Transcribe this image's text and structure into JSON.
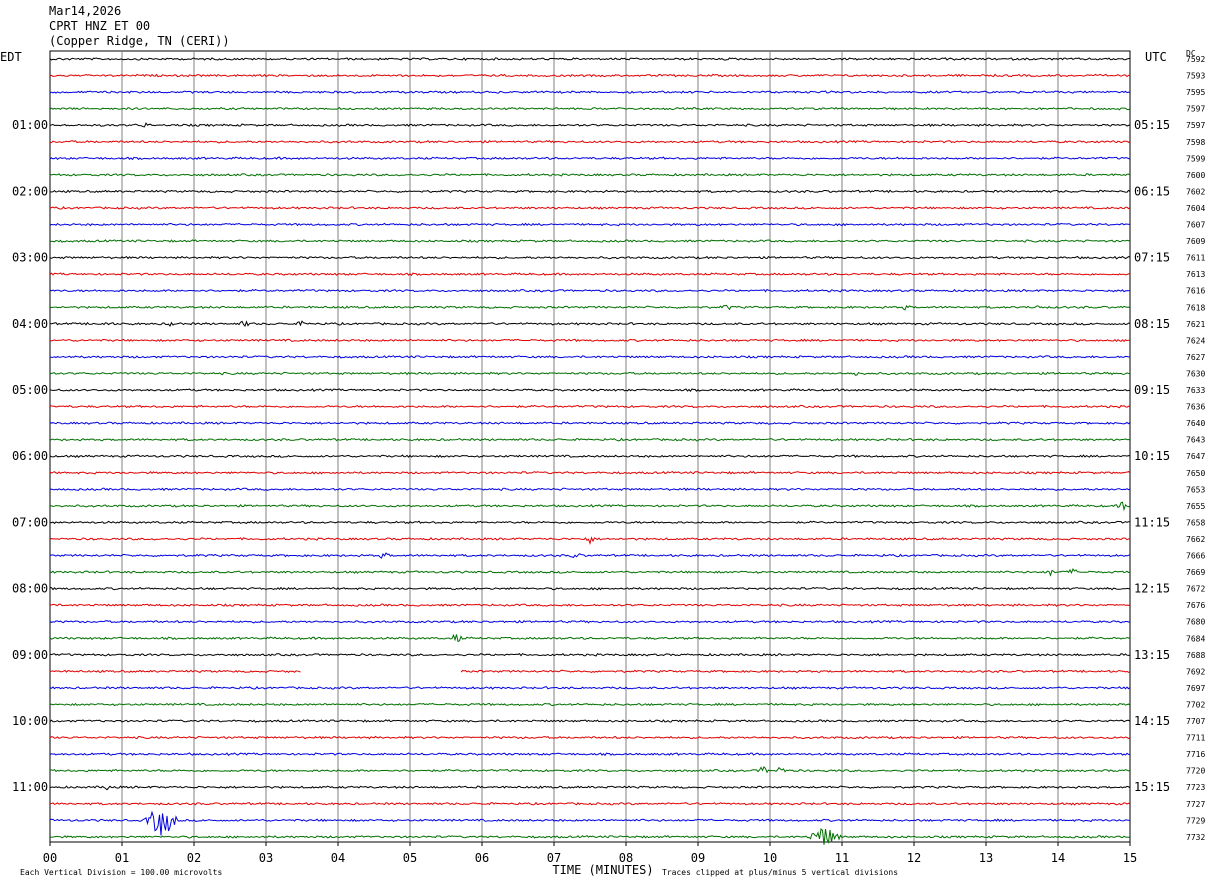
{
  "header": {
    "date": "Mar14,2026",
    "station": "CPRT HNZ ET 00",
    "location": "(Copper Ridge, TN (CERI))"
  },
  "left_timezone": "EDT",
  "right_timezone": "UTC",
  "dc_label": "DC",
  "chart_data": {
    "type": "line",
    "title": "",
    "xlabel": "TIME (MINUTES)",
    "x_ticks": [
      "00",
      "01",
      "02",
      "03",
      "04",
      "05",
      "06",
      "07",
      "08",
      "09",
      "10",
      "11",
      "12",
      "13",
      "14",
      "15"
    ],
    "xlim": [
      0,
      15
    ],
    "trace_colors": [
      "#000000",
      "#e00000",
      "#0000e0",
      "#007000"
    ],
    "left_hour_labels": [
      "01:00",
      "02:00",
      "03:00",
      "04:00",
      "05:00",
      "06:00",
      "07:00",
      "08:00",
      "09:00",
      "10:00",
      "11:00"
    ],
    "right_hour_labels": [
      "05:15",
      "06:15",
      "07:15",
      "08:15",
      "09:15",
      "10:15",
      "11:15",
      "12:15",
      "13:15",
      "14:15",
      "15:15"
    ],
    "dc_offsets": [
      "7592",
      "7593",
      "7595",
      "7597",
      "7597",
      "7598",
      "7599",
      "7600",
      "7602",
      "7604",
      "7607",
      "7609",
      "7611",
      "7613",
      "7616",
      "7618",
      "7621",
      "7624",
      "7627",
      "7630",
      "7633",
      "7636",
      "7640",
      "7643",
      "7647",
      "7650",
      "7653",
      "7655",
      "7658",
      "7662",
      "7666",
      "7669",
      "7672",
      "7676",
      "7680",
      "7684",
      "7688",
      "7692",
      "7697",
      "7702",
      "7707",
      "7711",
      "7716",
      "7720",
      "7723",
      "7727",
      "7729",
      "7732"
    ],
    "events": [
      {
        "trace": 4,
        "x": 1.3,
        "amp": 2.0
      },
      {
        "trace": 15,
        "x": 9.4,
        "amp": 2.5
      },
      {
        "trace": 15,
        "x": 11.9,
        "amp": 2.5
      },
      {
        "trace": 15,
        "x": 13.7,
        "amp": 2.5
      },
      {
        "trace": 16,
        "x": 0.8,
        "amp": 2.0
      },
      {
        "trace": 16,
        "x": 1.7,
        "amp": 3.0
      },
      {
        "trace": 16,
        "x": 2.7,
        "amp": 3.0
      },
      {
        "trace": 16,
        "x": 3.5,
        "amp": 2.0
      },
      {
        "trace": 19,
        "x": 11.2,
        "amp": 2.5
      },
      {
        "trace": 27,
        "x": 14.9,
        "amp": 4.0
      },
      {
        "trace": 29,
        "x": 7.5,
        "amp": 4.0
      },
      {
        "trace": 30,
        "x": 4.65,
        "amp": 4.0
      },
      {
        "trace": 30,
        "x": 7.3,
        "amp": 3.0
      },
      {
        "trace": 31,
        "x": 13.9,
        "amp": 3.0
      },
      {
        "trace": 31,
        "x": 14.2,
        "amp": 3.0
      },
      {
        "trace": 35,
        "x": 5.65,
        "amp": 5.0
      },
      {
        "trace": 43,
        "x": 9.9,
        "amp": 4.0
      },
      {
        "trace": 43,
        "x": 10.15,
        "amp": 4.0
      },
      {
        "trace": 44,
        "x": 0.8,
        "amp": 3.0
      },
      {
        "trace": 46,
        "x": 1.55,
        "amp": 16.0
      },
      {
        "trace": 47,
        "x": 10.75,
        "amp": 10.0
      }
    ],
    "gaps": [
      {
        "trace": 37,
        "start": 3.5,
        "end": 5.7
      }
    ]
  },
  "footer": {
    "scale_note": "Each Vertical Division =  100.00 microvolts",
    "clip_note": "Traces clipped at plus/minus 5 vertical divisions"
  }
}
